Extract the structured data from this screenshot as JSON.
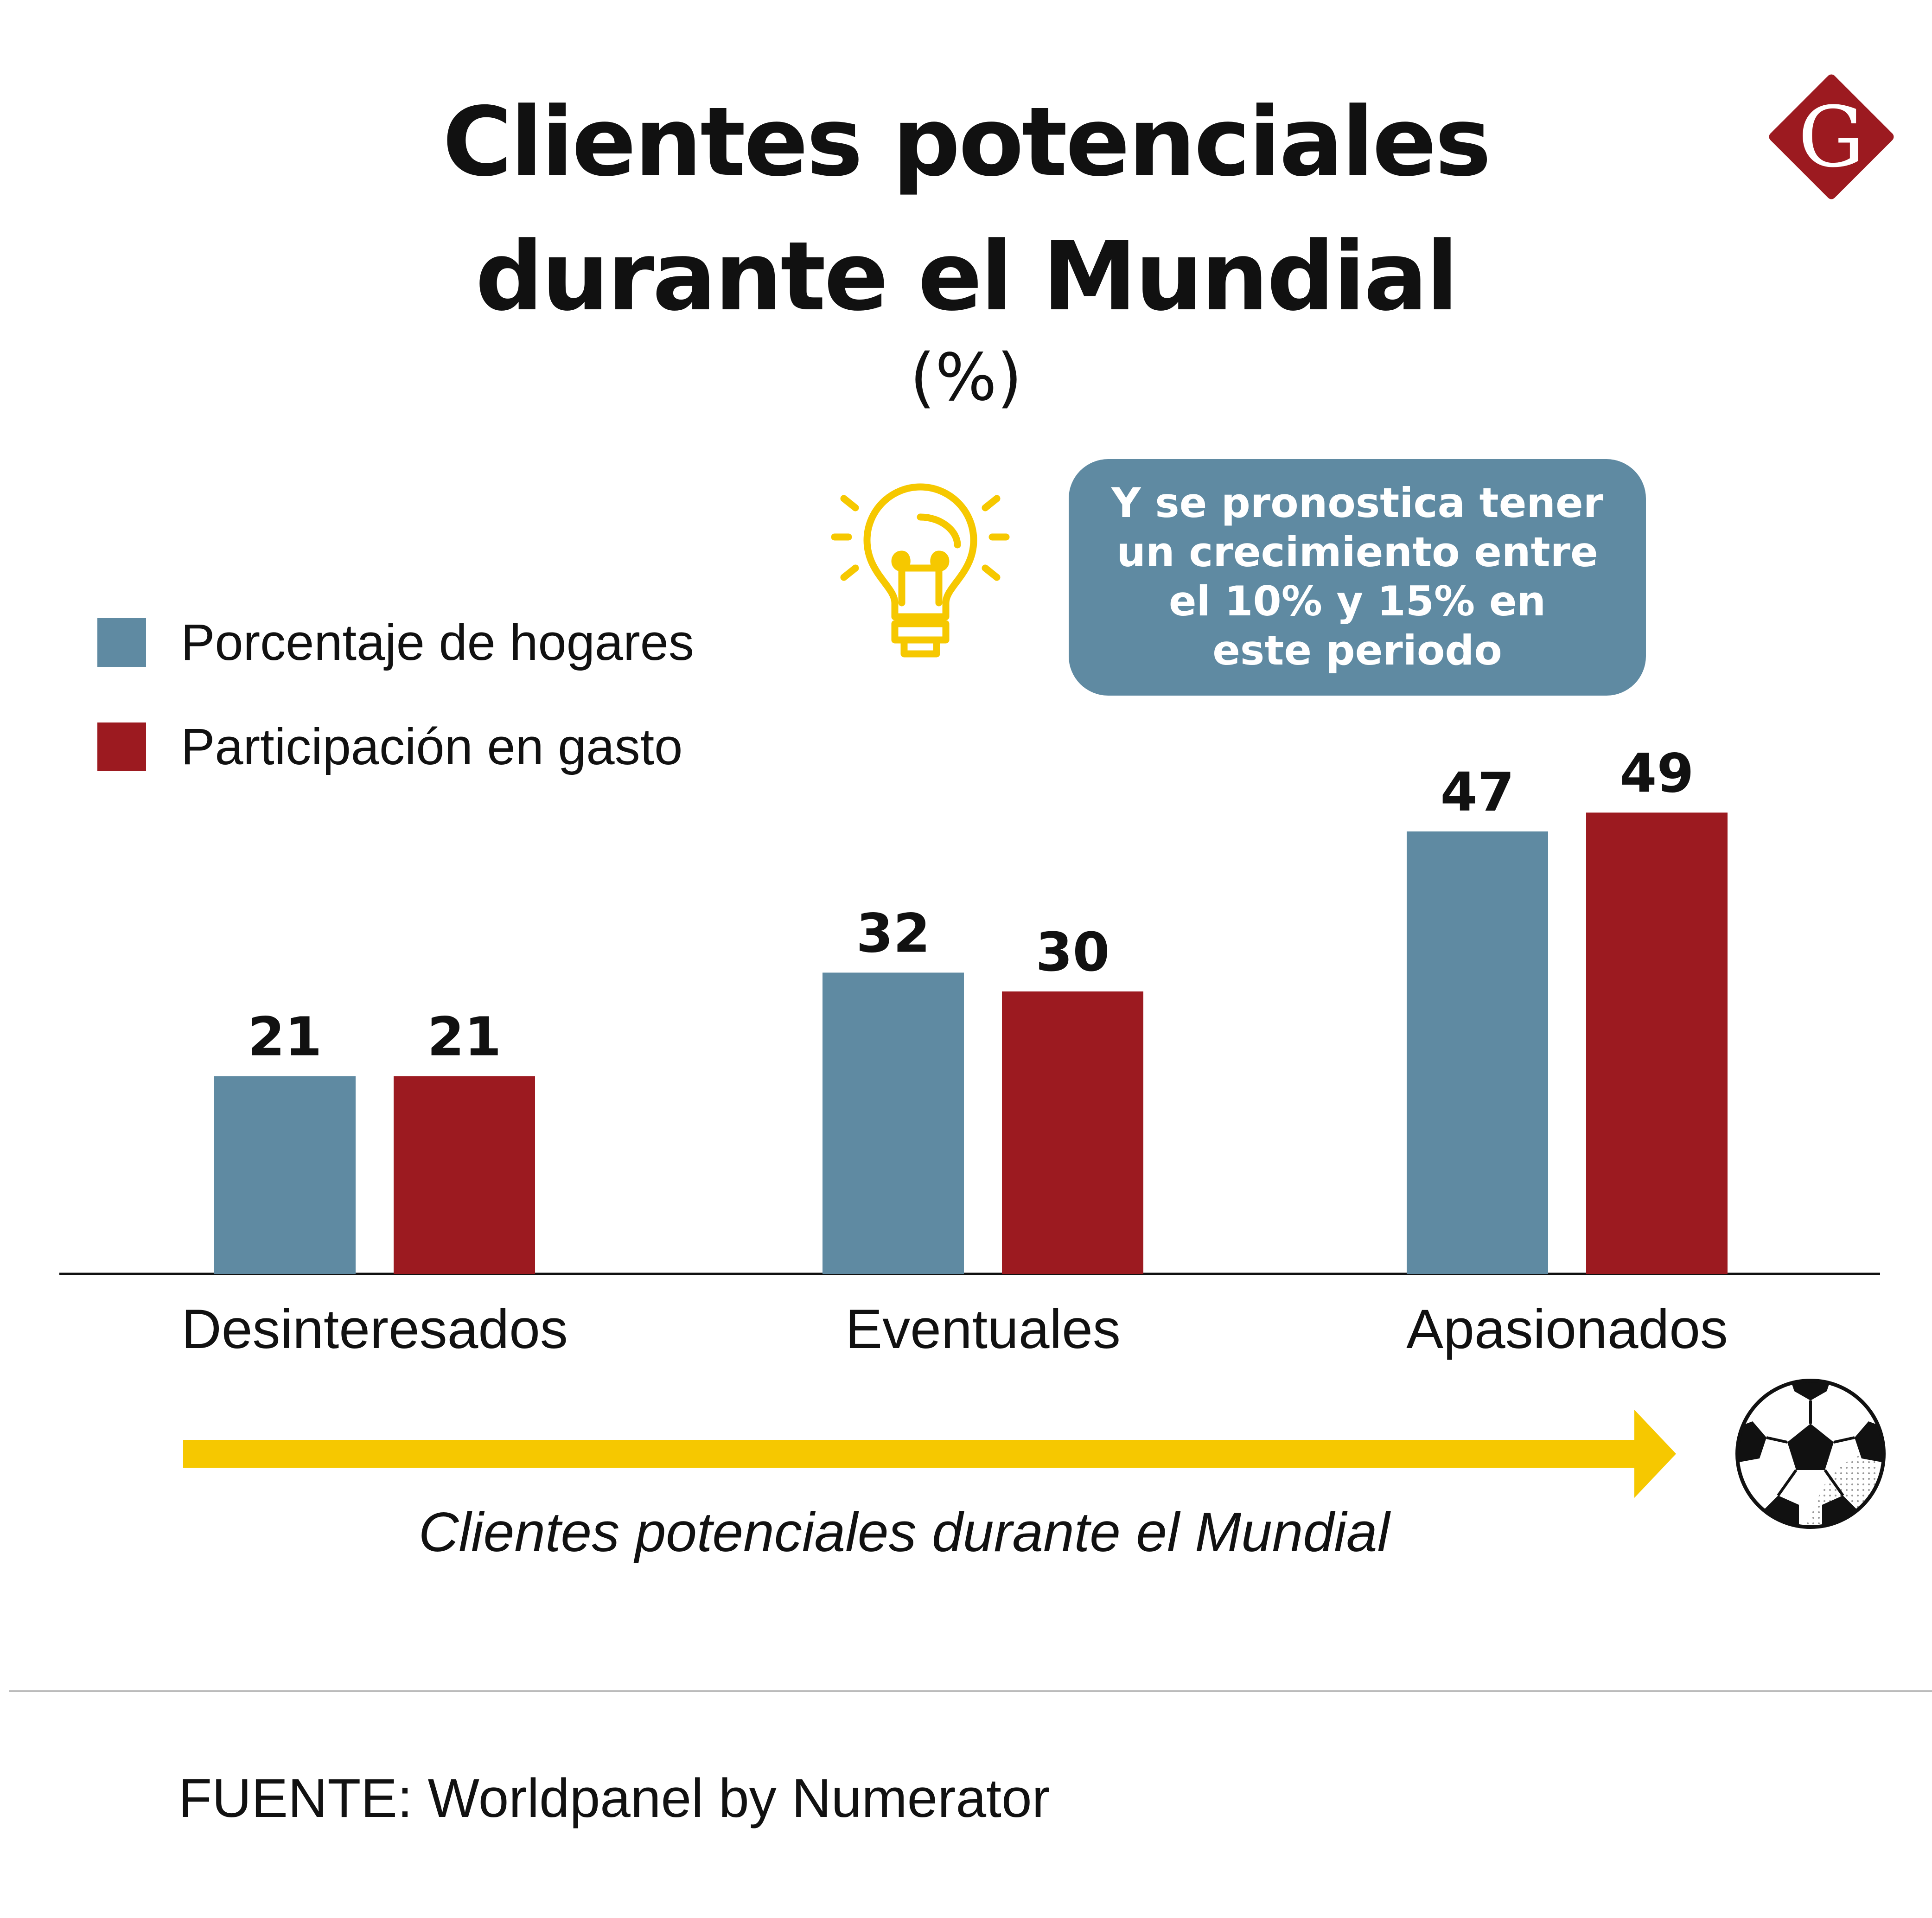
{
  "title_line1": "Clientes potenciales",
  "title_line2": "durante el Mundial",
  "subtitle": "(%)",
  "callout_lines": [
    "Y se pronostica tener",
    "un crecimiento entre",
    "el 10% y 15% en",
    "este periodo"
  ],
  "legend": [
    {
      "label": "Porcentaje de hogares",
      "color": "#5f8aa2"
    },
    {
      "label": "Participación en gasto",
      "color": "#9c1a20"
    }
  ],
  "axis_caption": "Clientes potenciales durante el Mundial",
  "source": "FUENTE: Worldpanel by Numerator",
  "logo_letter": "G",
  "colors": {
    "logo": "#9c1a20",
    "arrow": "#f6c800",
    "bulb": "#f6c800",
    "callout": "#5f8aa2"
  },
  "icons": [
    "light-bulb-icon",
    "soccer-ball-icon",
    "logo-icon"
  ],
  "chart_data": {
    "type": "bar",
    "categories": [
      "Desinteresados",
      "Eventuales",
      "Apasionados"
    ],
    "series": [
      {
        "name": "Porcentaje de hogares",
        "values": [
          21,
          32,
          47
        ],
        "color": "#5f8aa2"
      },
      {
        "name": "Participación en gasto",
        "values": [
          21,
          30,
          49
        ],
        "color": "#9c1a20"
      }
    ],
    "title": "Clientes potenciales durante el Mundial",
    "xlabel": "Clientes potenciales durante el Mundial",
    "ylabel": "",
    "legend_position": "top-left",
    "grid": false,
    "data_labels": true
  }
}
